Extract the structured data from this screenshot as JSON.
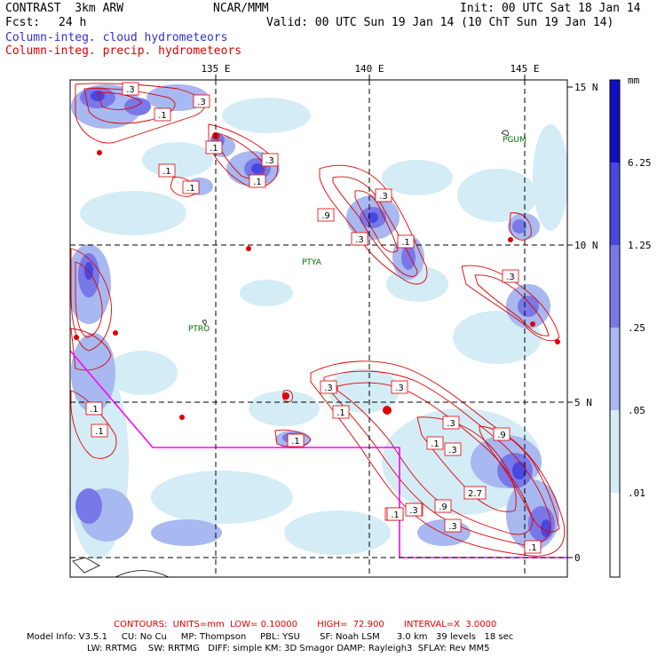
{
  "header": {
    "model": "CONTRAST  3km ARW",
    "center": "NCAR/MMM",
    "init": "Init: 00 UTC Sat 18 Jan 14",
    "fcst_label": "Fcst:",
    "fcst_value": "24 h",
    "valid": "Valid: 00 UTC Sun 19 Jan 14 (10 ChT Sun 19 Jan 14)",
    "legend_blue": "Column-integ. cloud hydrometeors",
    "legend_red": "Column-integ. precip. hydrometeors"
  },
  "axes": {
    "lon_labels": [
      "135 E",
      "140 E",
      "145 E"
    ],
    "lat_labels": [
      "15 N",
      "10 N",
      "5 N",
      "0"
    ]
  },
  "colorbar": {
    "unit": "mm",
    "levels": [
      "6.25",
      "1.25",
      ".25",
      ".05",
      ".01"
    ],
    "colors": [
      "#1010c0",
      "#4848e0",
      "#7878e8",
      "#a8b8f0",
      "#d4ecf6",
      "#ffffff"
    ]
  },
  "stations": [
    {
      "name": "PGUM"
    },
    {
      "name": "PTYA"
    },
    {
      "name": "PTRO"
    }
  ],
  "contour_labels": [
    ".3",
    ".3",
    ".1",
    ".1",
    ".3",
    ".1",
    ".1",
    ".1",
    ".3",
    ".3",
    ".9",
    ".1",
    ".3",
    ".1",
    ".1",
    ".3",
    ".3",
    ".1",
    ".1",
    ".3",
    ".1",
    ".3",
    ".9",
    ".1",
    ".3",
    ".1",
    "2.7",
    ".9",
    ".1",
    ".1",
    ".3",
    ".1"
  ],
  "footer": {
    "contours": "CONTOURS:  UNITS=mm  LOW= 0.10000       HIGH=  72.900       INTERVAL=X  3.0000",
    "model_info": "Model Info: V3.5.1     CU: No Cu     MP: Thompson     PBL: YSU       SF: Noah LSM      3.0 km   39 levels   18 sec",
    "physics": "LW: RRTMG    SW: RRTMG   DIFF: simple KM: 3D Smagor DAMP: Rayleigh3  SFLAY: Rev MM5"
  }
}
